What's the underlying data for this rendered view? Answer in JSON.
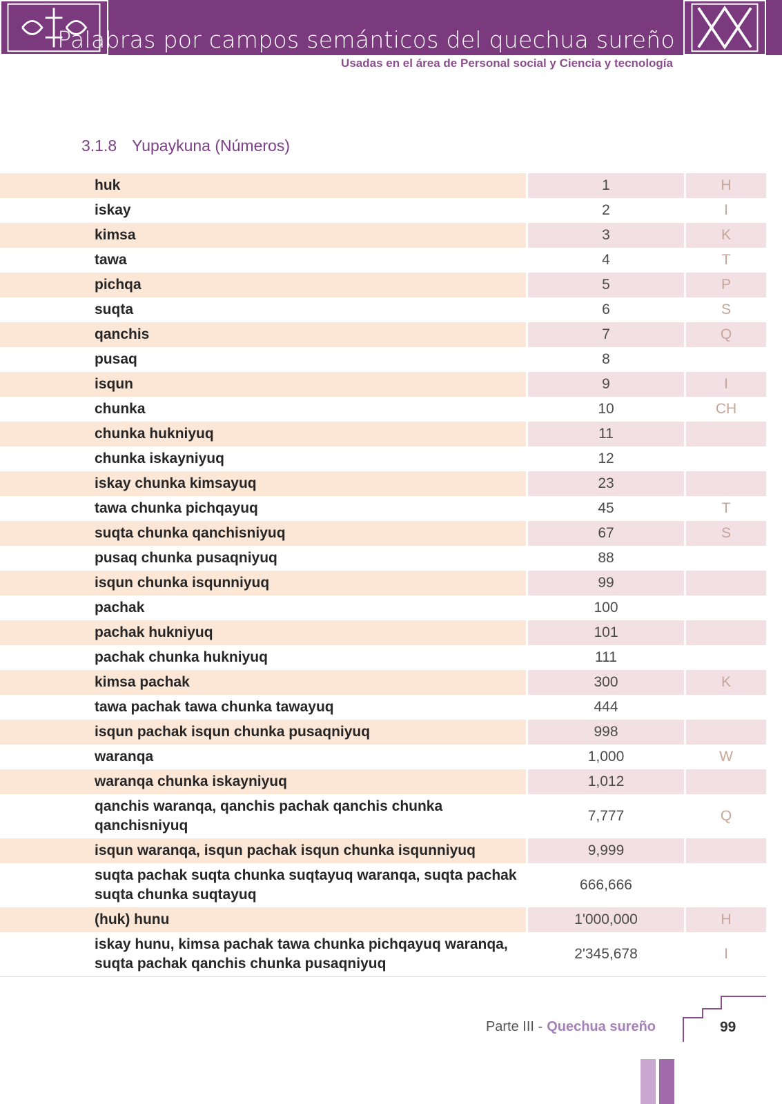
{
  "header": {
    "title": "Palabras por campos semánticos del quechua sureño",
    "subtitle": "Usadas en el área de Personal social y Ciencia y tecnología"
  },
  "section": {
    "number": "3.1.8",
    "title": "Yupaykuna (Números)"
  },
  "table": {
    "rows": [
      {
        "word": "huk",
        "number": "1",
        "letter": "H"
      },
      {
        "word": "iskay",
        "number": "2",
        "letter": "I"
      },
      {
        "word": "kimsa",
        "number": "3",
        "letter": "K"
      },
      {
        "word": "tawa",
        "number": "4",
        "letter": "T"
      },
      {
        "word": "pichqa",
        "number": "5",
        "letter": "P"
      },
      {
        "word": "suqta",
        "number": "6",
        "letter": "S"
      },
      {
        "word": "qanchis",
        "number": "7",
        "letter": "Q"
      },
      {
        "word": "pusaq",
        "number": "8"
      },
      {
        "word": "isqun",
        "number": "9",
        "letter": "I"
      },
      {
        "word": "chunka",
        "number": "10",
        "letter": "CH"
      },
      {
        "word": "chunka hukniyuq",
        "number": "11"
      },
      {
        "word": "chunka iskayniyuq",
        "number": "12"
      },
      {
        "word": "iskay chunka kimsayuq",
        "number": "23"
      },
      {
        "word": "tawa chunka pichqayuq",
        "number": "45",
        "letter": "T"
      },
      {
        "word": "suqta chunka qanchisniyuq",
        "number": "67",
        "letter": "S"
      },
      {
        "word": "pusaq chunka pusaqniyuq",
        "number": "88"
      },
      {
        "word": "isqun chunka isqunniyuq",
        "number": "99"
      },
      {
        "word": "pachak",
        "number": "100"
      },
      {
        "word": "pachak hukniyuq",
        "number": "101"
      },
      {
        "word": "pachak chunka hukniyuq",
        "number": "111"
      },
      {
        "word": "kimsa pachak",
        "number": "300",
        "letter": "K"
      },
      {
        "word": "tawa pachak tawa chunka tawayuq",
        "number": "444"
      },
      {
        "word": "isqun pachak isqun chunka pusaqniyuq",
        "number": "998"
      },
      {
        "word": "waranqa",
        "number": "1,000",
        "letter": "W"
      },
      {
        "word": "waranqa chunka iskayniyuq",
        "number": "1,012"
      },
      {
        "word": "qanchis waranqa, qanchis pachak qanchis chunka qanchisniyuq",
        "number": "7,777",
        "letter": "Q"
      },
      {
        "word": "isqun waranqa, isqun pachak isqun chunka isqunniyuq",
        "number": "9,999"
      },
      {
        "word": "suqta pachak suqta chunka suqtayuq waranqa, suqta pachak suqta chunka suqtayuq",
        "number": "666,666"
      },
      {
        "word": "(huk) hunu",
        "number": "1'000,000",
        "letter": "H"
      },
      {
        "word": "iskay hunu, kimsa pachak tawa chunka pichqayuq waranqa, suqta pachak qanchis chunka pusaqniyuq",
        "number": "2'345,678",
        "letter": "I"
      }
    ]
  },
  "footer": {
    "part": "Parte III -",
    "book": "Quechua sureño",
    "page": "99"
  }
}
